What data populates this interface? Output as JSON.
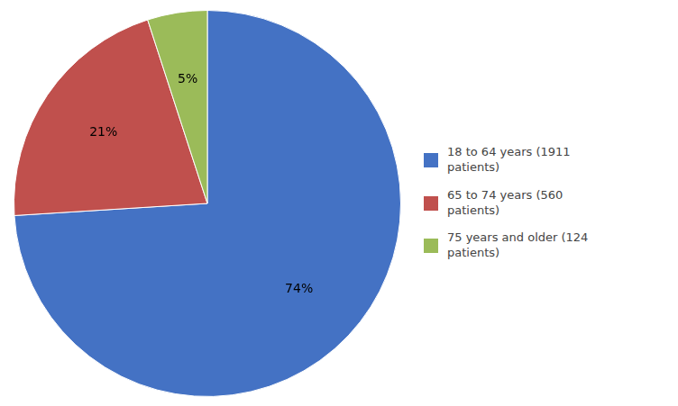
{
  "chart_data": {
    "type": "pie",
    "categories": [
      "18 to 64 years (1911\npatients)",
      "65 to 74 years (560\npatients)",
      "75 years and older (124\npatients)"
    ],
    "values": [
      74,
      21,
      5
    ],
    "value_labels": [
      "74%",
      "21%",
      "5%"
    ],
    "colors": [
      "#4472C4",
      "#C0504D",
      "#9BBB59"
    ],
    "legend": "right",
    "data_labels": true
  }
}
